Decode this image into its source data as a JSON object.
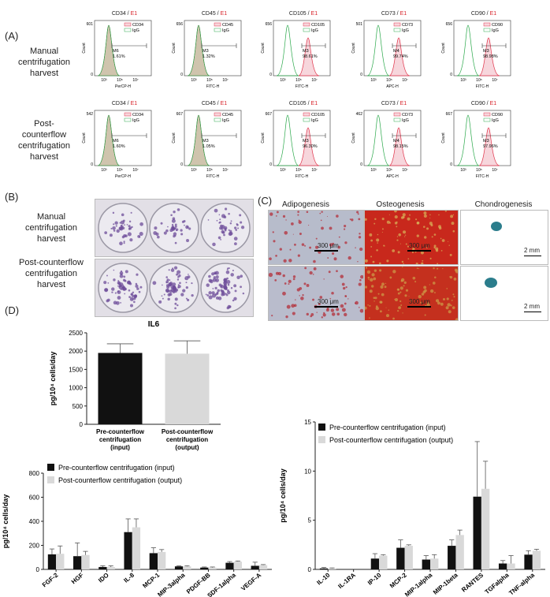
{
  "panel_letters": {
    "A": "(A)",
    "B": "(B)",
    "C": "(C)",
    "D": "(D)"
  },
  "row_labels": {
    "manual": [
      "Manual",
      "centrifugation",
      "harvest"
    ],
    "counterflow": [
      "Post-",
      "counterflow",
      "centrifugation",
      "harvest"
    ]
  },
  "panel_b_labels": {
    "manual": [
      "Manual",
      "centrifugation",
      "harvest"
    ],
    "counterflow": [
      "Post-counterflow",
      "centrifugation",
      "harvest"
    ]
  },
  "flow": {
    "sample_suffix": "E1",
    "ylabel": "Count",
    "rows": [
      [
        {
          "marker": "CD34",
          "xlabel": "PerCP-H",
          "gate": "M6",
          "pct": "1.61%",
          "ymax": "601",
          "iso": "IgG",
          "pos_shift": 0
        },
        {
          "marker": "CD45",
          "xlabel": "FITC-H",
          "gate": "M3",
          "pct": "1.32%",
          "ymax": "656",
          "iso": "IgG",
          "pos_shift": 0
        },
        {
          "marker": "CD105",
          "xlabel": "FITC-H",
          "gate": "M3",
          "pct": "98.61%",
          "ymax": "656",
          "iso": "IgG",
          "pos_shift": 1
        },
        {
          "marker": "CD73",
          "xlabel": "APC-H",
          "gate": "M4",
          "pct": "99.74%",
          "ymax": "501",
          "iso": "IgG",
          "pos_shift": 1
        },
        {
          "marker": "CD90",
          "xlabel": "FITC-H",
          "gate": "M3",
          "pct": "98.98%",
          "ymax": "656",
          "iso": "IgG",
          "pos_shift": 1
        }
      ],
      [
        {
          "marker": "CD34",
          "xlabel": "PerCP-H",
          "gate": "M6",
          "pct": "1.60%",
          "ymax": "542",
          "iso": "IgG",
          "pos_shift": 0
        },
        {
          "marker": "CD45",
          "xlabel": "FITC-H",
          "gate": "M3",
          "pct": "1.05%",
          "ymax": "667",
          "iso": "IgG",
          "pos_shift": 0
        },
        {
          "marker": "CD105",
          "xlabel": "FITC-H",
          "gate": "M3",
          "pct": "96.30%",
          "ymax": "667",
          "iso": "IgG",
          "pos_shift": 1
        },
        {
          "marker": "CD73",
          "xlabel": "APC-H",
          "gate": "M4",
          "pct": "98.15%",
          "ymax": "462",
          "iso": "IgG",
          "pos_shift": 1
        },
        {
          "marker": "CD90",
          "xlabel": "FITC-H",
          "gate": "M3",
          "pct": "97.96%",
          "ymax": "667",
          "iso": "IgG",
          "pos_shift": 1
        }
      ]
    ],
    "axis_ticks": [
      "10³",
      "10⁵",
      "10⁷"
    ],
    "axis_end": "10^6.7"
  },
  "differentiation": {
    "titles": [
      "Adipogenesis",
      "Osteogenesis",
      "Chondrogenesis"
    ],
    "scale_um": "300 μm",
    "scale_mm": "2 mm"
  },
  "chart_data": [
    {
      "type": "bar",
      "title": "IL6",
      "ylabel": "pg/10⁴ cells/day",
      "categories": [
        "Pre-counterflow centrifugation (input)",
        "Post-counterflow centrifugation (output)"
      ],
      "category_lines": [
        [
          "Pre-counterflow",
          "centrifugation",
          "(input)"
        ],
        [
          "Post-counterflow",
          "centrifugation",
          "(output)"
        ]
      ],
      "values": [
        1950,
        1930
      ],
      "errors": [
        250,
        350
      ],
      "colors": [
        "#111111",
        "#d9d9d9"
      ],
      "ylim": [
        0,
        2500
      ],
      "yticks": [
        "0",
        "500",
        "1000",
        "1500",
        "2000",
        "2500"
      ]
    },
    {
      "type": "bar",
      "ylabel": "pg/10⁴ cells/day",
      "categories": [
        "FGF-2",
        "HGF",
        "IDO",
        "IL-8",
        "MCP-1",
        "MIP-3alpha",
        "PDGF-BB",
        "SDF-1alpha",
        "VEGF-A"
      ],
      "series": [
        {
          "name": "Pre-counterflow centrifugation (input)",
          "color": "#111111",
          "values": [
            125,
            110,
            20,
            310,
            135,
            25,
            15,
            55,
            30
          ],
          "errors": [
            45,
            110,
            10,
            110,
            45,
            5,
            5,
            10,
            30
          ]
        },
        {
          "name": "Post-counterflow centrifugation (output)",
          "color": "#d9d9d9",
          "values": [
            130,
            120,
            20,
            350,
            145,
            25,
            15,
            65,
            35
          ],
          "errors": [
            65,
            30,
            10,
            70,
            20,
            5,
            5,
            5,
            5
          ]
        }
      ],
      "ylim": [
        0,
        800
      ],
      "yticks": [
        "0",
        "200",
        "400",
        "600",
        "800"
      ]
    },
    {
      "type": "bar",
      "ylabel": "pg/10⁴ cells/day",
      "categories": [
        "IL-10",
        "IL-1RA",
        "IP-10",
        "MCP-2",
        "MIP-1alpha",
        "MIP-1beta",
        "RANTES",
        "TGFalpha",
        "TNF-alpha"
      ],
      "series": [
        {
          "name": "Pre-counterflow centrifugation (input)",
          "color": "#111111",
          "values": [
            0.1,
            0,
            1.1,
            2.2,
            1.0,
            2.4,
            7.4,
            0.6,
            1.5
          ],
          "errors": [
            0.1,
            0,
            0.5,
            0.8,
            0.4,
            0.6,
            5.6,
            0.3,
            0.4
          ]
        },
        {
          "name": "Post-counterflow centrifugation (output)",
          "color": "#d9d9d9",
          "values": [
            0.1,
            0,
            1.4,
            2.4,
            1.1,
            3.5,
            8.2,
            0.6,
            1.9
          ],
          "errors": [
            0.05,
            0,
            0.1,
            0.1,
            0.4,
            0.5,
            2.8,
            0.8,
            0.15
          ]
        }
      ],
      "ylim": [
        0,
        15
      ],
      "yticks": [
        "0",
        "5",
        "10",
        "15"
      ]
    }
  ]
}
